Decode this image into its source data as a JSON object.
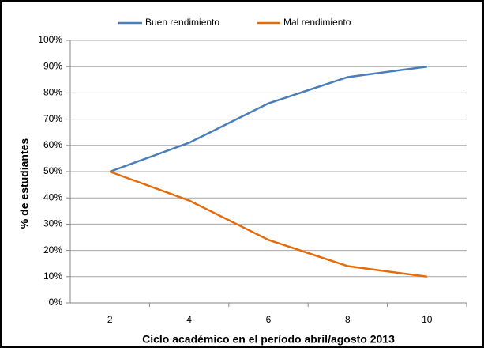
{
  "chart_data": {
    "type": "line",
    "x_label": "Ciclo académico en el período abril/agosto 2013",
    "y_label": "% de estudiantes",
    "categories": [
      "2",
      "4",
      "6",
      "8",
      "10"
    ],
    "series": [
      {
        "name": "Buen rendimiento",
        "color": "#4a7ebb",
        "values": [
          50,
          61,
          76,
          86,
          90
        ]
      },
      {
        "name": "Mal rendimiento",
        "color": "#e46c0a",
        "values": [
          50,
          39,
          24,
          14,
          10
        ]
      }
    ],
    "ylim": [
      0,
      100
    ],
    "yticks": [
      {
        "value": 0,
        "label": "0%"
      },
      {
        "value": 10,
        "label": "10%"
      },
      {
        "value": 20,
        "label": "20%"
      },
      {
        "value": 30,
        "label": "30%"
      },
      {
        "value": 40,
        "label": "40%"
      },
      {
        "value": 50,
        "label": "50%"
      },
      {
        "value": 60,
        "label": "60%"
      },
      {
        "value": 70,
        "label": "70%"
      },
      {
        "value": 80,
        "label": "80%"
      },
      {
        "value": 90,
        "label": "90%"
      },
      {
        "value": 100,
        "label": "100%"
      }
    ],
    "grid": true,
    "legend": "top"
  }
}
